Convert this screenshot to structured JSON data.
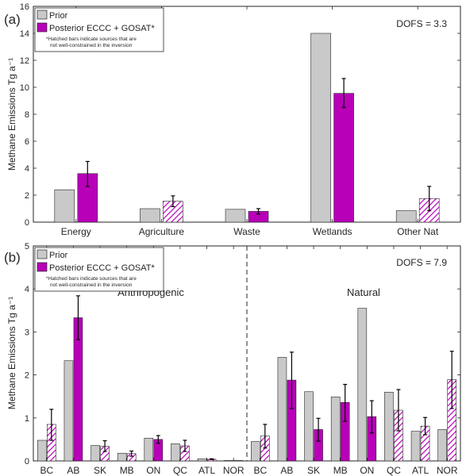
{
  "colors": {
    "prior": "#c9c9c9",
    "posterior": "#b800b8",
    "hatch_stroke": "#b800b8",
    "error": "#000000",
    "axes": "#262626"
  },
  "legend": {
    "prior_label": "Prior",
    "posterior_label": "Posterior ECCC + GOSAT*",
    "note_line1": "*Hatched bars indicate sources that are",
    "note_line2": "not well-constrained in the inversion"
  },
  "chart_data": [
    {
      "type": "bar",
      "panel_label": "(a)",
      "dofs": "DOFS = 3.3",
      "ylabel": "Methane Emissions Tg a⁻¹",
      "ylim": [
        0,
        16
      ],
      "yticks": [
        0,
        2,
        4,
        6,
        8,
        10,
        12,
        14,
        16
      ],
      "grid": false,
      "legend_position": "top-left",
      "categories": [
        "Energy",
        "Agriculture",
        "Waste",
        "Wetlands",
        "Other Nat"
      ],
      "series": [
        {
          "name": "Prior",
          "values": [
            2.4,
            1.0,
            0.95,
            14.0,
            0.85
          ]
        },
        {
          "name": "Posterior ECCC + GOSAT*",
          "values": [
            3.6,
            1.55,
            0.8,
            9.55,
            1.75
          ],
          "error_low": [
            2.65,
            1.15,
            0.6,
            8.5,
            0.85
          ],
          "error_high": [
            4.5,
            1.95,
            1.0,
            10.65,
            2.65
          ],
          "hatched": [
            false,
            true,
            false,
            false,
            true
          ]
        }
      ]
    },
    {
      "type": "bar",
      "panel_label": "(b)",
      "dofs": "DOFS = 7.9",
      "ylabel": "Methane Emissions Tg a⁻¹",
      "ylim": [
        0,
        5
      ],
      "yticks": [
        0,
        1,
        2,
        3,
        4,
        5
      ],
      "grid": false,
      "legend_position": "top-left",
      "group_labels": [
        "Anthropogenic",
        "Natural"
      ],
      "categories": [
        "BC",
        "AB",
        "SK",
        "MB",
        "ON",
        "QC",
        "ATL",
        "NOR",
        "BC",
        "AB",
        "SK",
        "MB",
        "ON",
        "QC",
        "ATL",
        "NOR"
      ],
      "series": [
        {
          "name": "Prior",
          "values": [
            0.48,
            2.33,
            0.36,
            0.18,
            0.53,
            0.4,
            0.05,
            0.01,
            0.45,
            2.41,
            1.61,
            1.49,
            3.55,
            1.6,
            0.69,
            0.73
          ]
        },
        {
          "name": "Posterior ECCC + GOSAT*",
          "values": [
            0.85,
            3.33,
            0.34,
            0.17,
            0.5,
            0.35,
            0.04,
            0.01,
            0.58,
            1.88,
            0.73,
            1.36,
            1.03,
            1.18,
            0.81,
            1.89
          ],
          "error_low": [
            0.48,
            2.82,
            0.22,
            0.11,
            0.41,
            0.22,
            0.03,
            0.01,
            0.3,
            1.22,
            0.46,
            0.92,
            0.65,
            0.7,
            0.61,
            1.22
          ],
          "error_high": [
            1.2,
            3.84,
            0.47,
            0.23,
            0.59,
            0.48,
            0.05,
            0.01,
            0.85,
            2.53,
            0.99,
            1.78,
            1.4,
            1.66,
            1.01,
            2.55
          ],
          "hatched": [
            true,
            false,
            true,
            true,
            false,
            true,
            true,
            false,
            true,
            false,
            false,
            false,
            false,
            true,
            true,
            true
          ]
        }
      ]
    }
  ]
}
